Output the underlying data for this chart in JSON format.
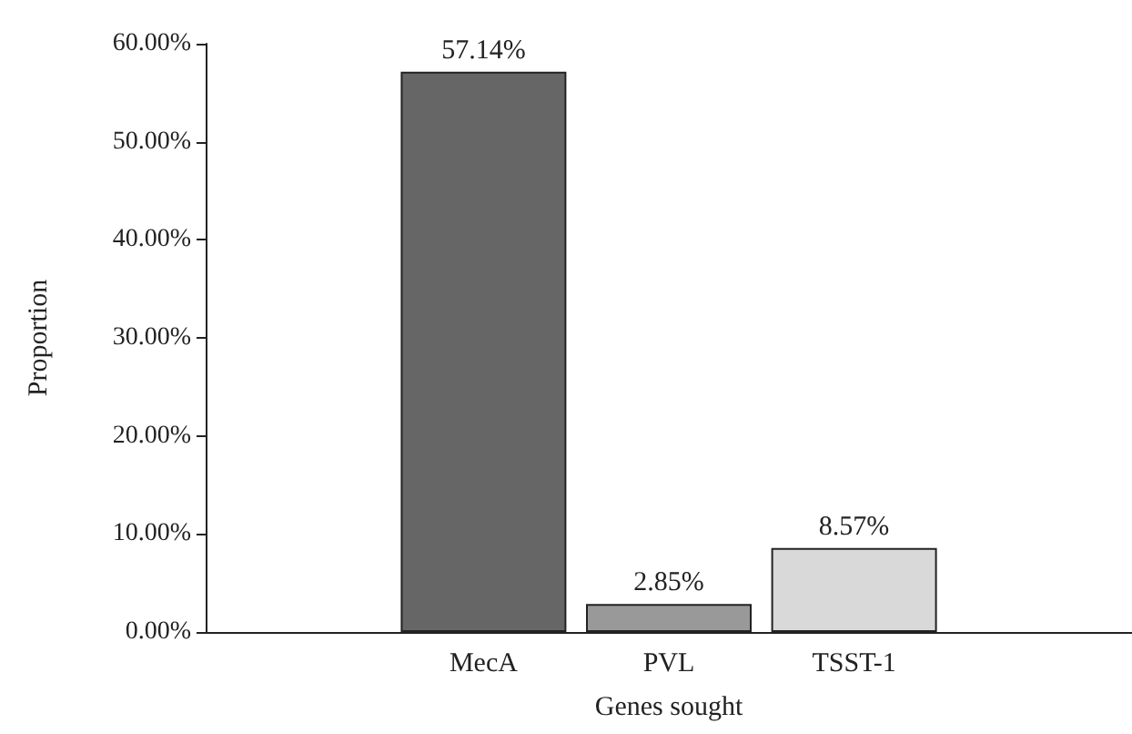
{
  "chart_data": {
    "type": "bar",
    "xlabel": "Genes sought",
    "ylabel": "Proportion",
    "categories": [
      "MecA",
      "PVL",
      "TSST-1"
    ],
    "values": [
      57.14,
      2.85,
      8.57
    ],
    "colors": [
      "#666666",
      "#999999",
      "#d9d9d9"
    ],
    "value_labels": [
      "57.14%",
      "2.85%",
      "8.57%"
    ],
    "ylim": [
      0,
      60
    ],
    "yticks": [
      {
        "value": 0,
        "label": "0.00%"
      },
      {
        "value": 10,
        "label": "10.00%"
      },
      {
        "value": 20,
        "label": "20.00%"
      },
      {
        "value": 30,
        "label": "30.00%"
      },
      {
        "value": 40,
        "label": "40.00%"
      },
      {
        "value": 50,
        "label": "50.00%"
      },
      {
        "value": 60,
        "label": "60.00%"
      }
    ],
    "grid": false
  }
}
